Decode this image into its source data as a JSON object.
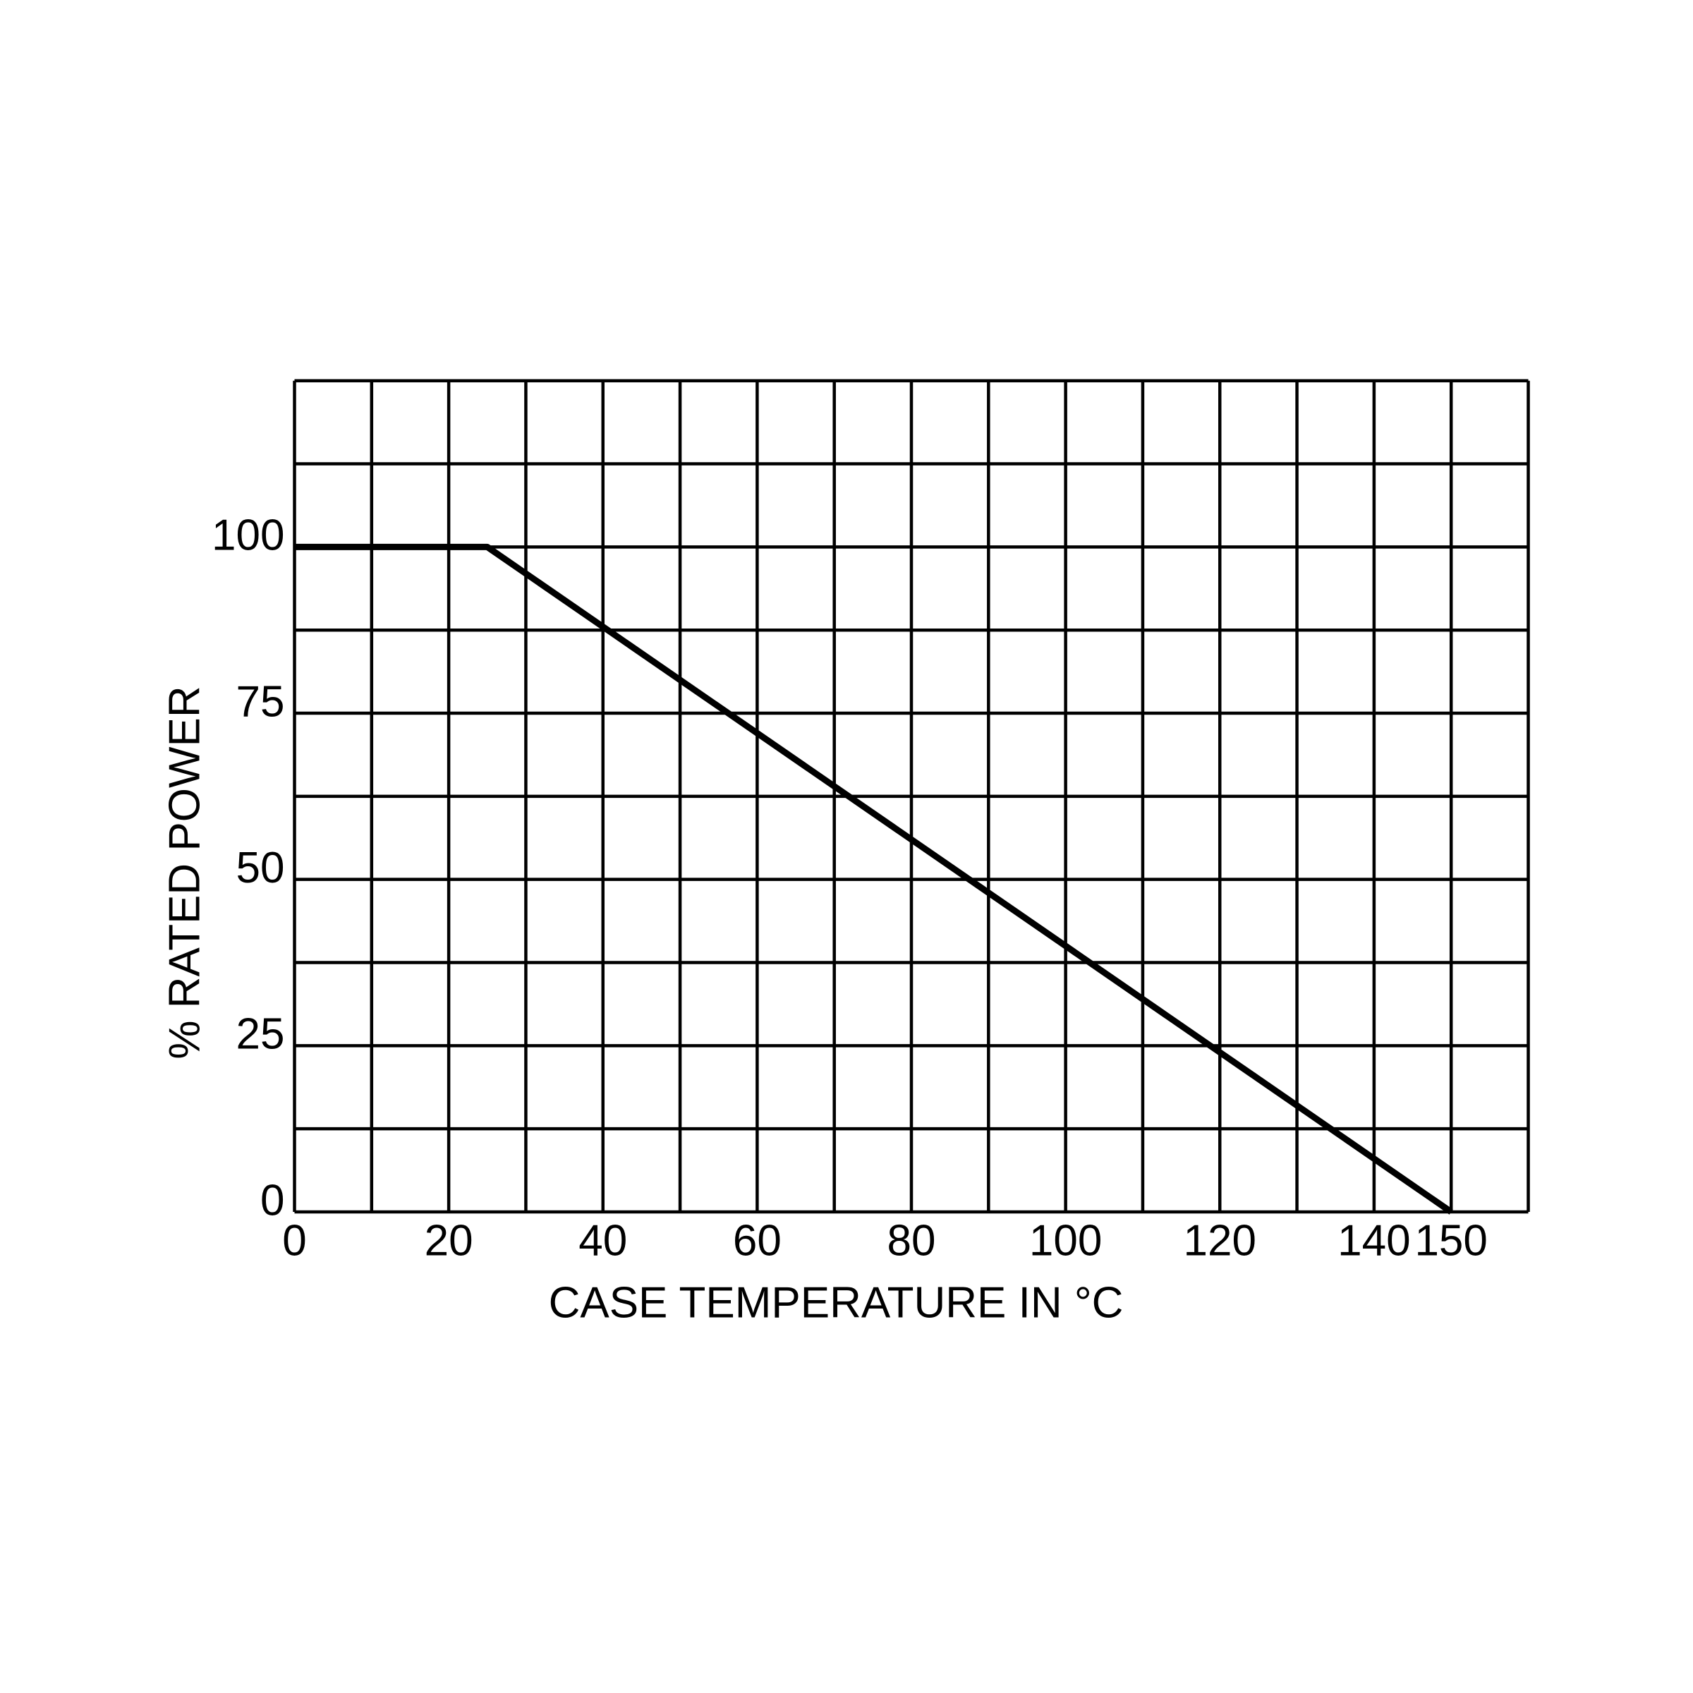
{
  "chart_data": {
    "type": "line",
    "x_label": "CASE TEMPERATURE IN °C",
    "y_label": "% RATED POWER",
    "x": [
      0,
      25,
      150
    ],
    "series": [
      {
        "color": "#000000",
        "values": [
          100,
          100,
          0
        ]
      }
    ],
    "xlim": [
      0,
      160
    ],
    "ylim": [
      0,
      125
    ],
    "xticks": [
      0,
      20,
      40,
      60,
      80,
      100,
      120,
      140,
      150
    ],
    "yticks": [
      0,
      25,
      50,
      75,
      100
    ],
    "xgrid": [
      0,
      10,
      20,
      30,
      40,
      50,
      60,
      70,
      80,
      90,
      100,
      110,
      120,
      130,
      140,
      150,
      160
    ],
    "ygrid": [
      0,
      12.5,
      25,
      37.5,
      50,
      62.5,
      75,
      87.5,
      100,
      112.5,
      125
    ],
    "grid": true
  }
}
